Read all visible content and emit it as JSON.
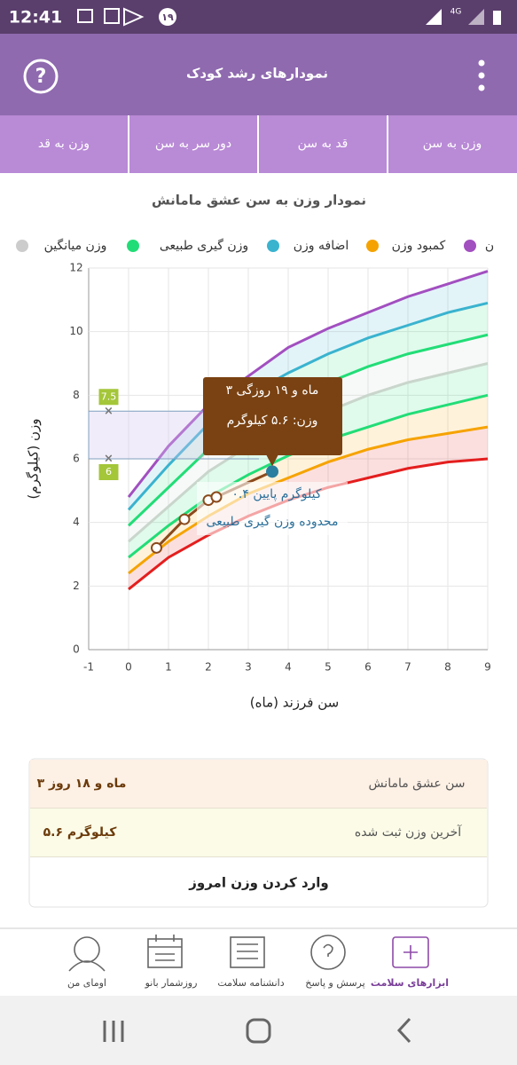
{
  "status_bar": {
    "time": "12:41",
    "badge": "۱۹",
    "network": "4G"
  },
  "app_bar": {
    "title": "نمودارهای رشد کودک"
  },
  "tabs": [
    "وزن به سن",
    "قد به سن",
    "دور سر به سن",
    "وزن به قد"
  ],
  "chart_data": {
    "type": "line",
    "title": "نمودار وزن به سن عشق مامانش",
    "x_label": "سن فرزند (ماه)",
    "y_label": "وزن (کیلوگرم)",
    "legend": [
      {
        "name": "ن",
        "color": "#a24fc0"
      },
      {
        "name": "کمبود وزن",
        "color": "#f5a300"
      },
      {
        "name": "اضافه وزن",
        "color": "#3ab3cf"
      },
      {
        "name": "وزن گیری طبیعی",
        "color": "#22dd77"
      },
      {
        "name": "وزن میانگین",
        "color": "#cccccc"
      }
    ],
    "x": [
      0,
      1,
      2,
      3,
      4,
      5,
      6,
      7,
      8,
      9
    ],
    "series": [
      {
        "color": "#e41e1e",
        "values": [
          1.9,
          2.9,
          3.6,
          4.2,
          4.7,
          5.1,
          5.4,
          5.7,
          5.9,
          6.0
        ]
      },
      {
        "color": "#f5a300",
        "values": [
          2.4,
          3.4,
          4.2,
          4.9,
          5.4,
          5.9,
          6.3,
          6.6,
          6.8,
          7.0
        ]
      },
      {
        "color": "#22dd77",
        "values": [
          2.9,
          3.9,
          4.8,
          5.5,
          6.1,
          6.6,
          7.0,
          7.4,
          7.7,
          8.0
        ]
      },
      {
        "color": "#c9d6cc",
        "values": [
          3.4,
          4.5,
          5.6,
          6.4,
          7.0,
          7.5,
          8.0,
          8.4,
          8.7,
          9.0
        ]
      },
      {
        "color": "#22dd77",
        "values": [
          3.9,
          5.1,
          6.3,
          7.2,
          7.8,
          8.4,
          8.9,
          9.3,
          9.6,
          9.9
        ]
      },
      {
        "color": "#3ab3cf",
        "values": [
          4.4,
          5.8,
          7.1,
          8.0,
          8.7,
          9.3,
          9.8,
          10.2,
          10.6,
          10.9
        ]
      },
      {
        "color": "#a24fc0",
        "values": [
          4.8,
          6.4,
          7.7,
          8.6,
          9.5,
          10.1,
          10.6,
          11.1,
          11.5,
          11.9
        ]
      }
    ],
    "child": {
      "color": "#8b4a1c",
      "last_point_color": "#2a7fa0",
      "x": [
        0.7,
        1.4,
        2.0,
        2.2,
        3.6
      ],
      "values": [
        3.2,
        4.1,
        4.7,
        4.8,
        5.6
      ]
    },
    "range_box": {
      "x": -0.5,
      "values": [
        7.5,
        6
      ],
      "color": "#a4c639"
    },
    "tooltip": [
      "۳ ماه و ۱۹ روزگی",
      "وزن: ۵.۶ کیلوگرم"
    ],
    "annotations": [
      "۰.۴ کیلوگرم پایین",
      "محدوده وزن گیری طبیعی"
    ],
    "xlim": [
      -1,
      9
    ],
    "xticks": [
      -1,
      0,
      1,
      2,
      3,
      4,
      5,
      6,
      7,
      8,
      9
    ],
    "ylim": [
      0,
      12
    ],
    "yticks": [
      0,
      2,
      4,
      6,
      8,
      10,
      12
    ],
    "grid": true
  },
  "info_card": {
    "rows": [
      {
        "label": "سن عشق مامانش",
        "value": "۳ ماه و ۱۸ روز"
      },
      {
        "label": "آخرین وزن ثبت شده",
        "value": "۵.۶ کیلوگرم"
      }
    ],
    "button": "وارد کردن وزن امروز"
  },
  "bottom_nav": [
    "ابزارهای سلامت",
    "پرسش و پاسخ",
    "دانشنامه سلامت",
    "روزشمار بانو",
    "اومای من"
  ]
}
